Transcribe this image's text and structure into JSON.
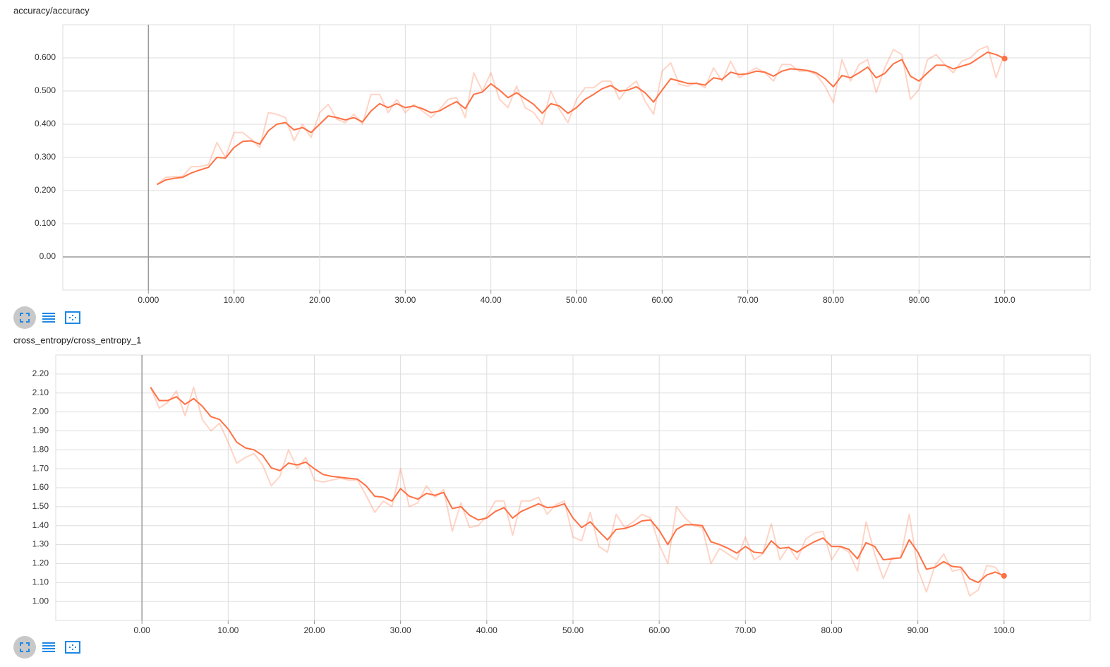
{
  "chart_data": [
    {
      "type": "line",
      "title": "accuracy/accuracy",
      "grid": true,
      "xlim": [
        -10,
        110
      ],
      "ylim": [
        -0.1,
        0.7
      ],
      "xticks": [
        {
          "value": 0,
          "label": "0.000"
        },
        {
          "value": 10,
          "label": "10.00"
        },
        {
          "value": 20,
          "label": "20.00"
        },
        {
          "value": 30,
          "label": "30.00"
        },
        {
          "value": 40,
          "label": "40.00"
        },
        {
          "value": 50,
          "label": "50.00"
        },
        {
          "value": 60,
          "label": "60.00"
        },
        {
          "value": 70,
          "label": "70.00"
        },
        {
          "value": 80,
          "label": "80.00"
        },
        {
          "value": 90,
          "label": "90.00"
        },
        {
          "value": 100,
          "label": "100.0"
        }
      ],
      "yticks": [
        {
          "value": 0,
          "label": "0.00"
        },
        {
          "value": 0.1,
          "label": "0.100"
        },
        {
          "value": 0.2,
          "label": "0.200"
        },
        {
          "value": 0.3,
          "label": "0.300"
        },
        {
          "value": 0.4,
          "label": "0.400"
        },
        {
          "value": 0.5,
          "label": "0.500"
        },
        {
          "value": 0.6,
          "label": "0.600"
        }
      ],
      "x": [
        1,
        2,
        3,
        4,
        5,
        6,
        7,
        8,
        9,
        10,
        11,
        12,
        13,
        14,
        15,
        16,
        17,
        18,
        19,
        20,
        21,
        22,
        23,
        24,
        25,
        26,
        27,
        28,
        29,
        30,
        31,
        32,
        33,
        34,
        35,
        36,
        37,
        38,
        39,
        40,
        41,
        42,
        43,
        44,
        45,
        46,
        47,
        48,
        49,
        50,
        51,
        52,
        53,
        54,
        55,
        56,
        57,
        58,
        59,
        60,
        61,
        62,
        63,
        64,
        65,
        66,
        67,
        68,
        69,
        70,
        71,
        72,
        73,
        74,
        75,
        76,
        77,
        78,
        79,
        80,
        81,
        82,
        83,
        84,
        85,
        86,
        87,
        88,
        89,
        90,
        91,
        92,
        93,
        94,
        95,
        96,
        97,
        98,
        99,
        100
      ],
      "series": [
        {
          "color": "#ff7043",
          "opacity": 0.3,
          "values": [
            0.218,
            0.24,
            0.242,
            0.243,
            0.272,
            0.272,
            0.278,
            0.345,
            0.3,
            0.375,
            0.375,
            0.355,
            0.33,
            0.435,
            0.43,
            0.42,
            0.35,
            0.4,
            0.36,
            0.435,
            0.46,
            0.415,
            0.405,
            0.43,
            0.4,
            0.49,
            0.49,
            0.435,
            0.475,
            0.435,
            0.46,
            0.44,
            0.42,
            0.445,
            0.475,
            0.48,
            0.42,
            0.555,
            0.5,
            0.555,
            0.475,
            0.45,
            0.515,
            0.45,
            0.435,
            0.4,
            0.5,
            0.445,
            0.405,
            0.475,
            0.51,
            0.51,
            0.53,
            0.53,
            0.475,
            0.51,
            0.53,
            0.47,
            0.43,
            0.56,
            0.585,
            0.52,
            0.515,
            0.525,
            0.51,
            0.57,
            0.53,
            0.59,
            0.54,
            0.555,
            0.57,
            0.555,
            0.53,
            0.58,
            0.58,
            0.56,
            0.56,
            0.55,
            0.515,
            0.465,
            0.595,
            0.53,
            0.58,
            0.595,
            0.495,
            0.57,
            0.625,
            0.61,
            0.475,
            0.505,
            0.595,
            0.61,
            0.58,
            0.555,
            0.59,
            0.6,
            0.625,
            0.635,
            0.54,
            0.615
          ]
        },
        {
          "color": "#ff7043",
          "opacity": 1,
          "values": [
            0.218,
            0.232,
            0.237,
            0.24,
            0.253,
            0.262,
            0.27,
            0.3,
            0.298,
            0.33,
            0.348,
            0.35,
            0.34,
            0.38,
            0.4,
            0.405,
            0.383,
            0.39,
            0.375,
            0.4,
            0.425,
            0.42,
            0.413,
            0.42,
            0.407,
            0.44,
            0.462,
            0.45,
            0.462,
            0.45,
            0.455,
            0.447,
            0.435,
            0.44,
            0.455,
            0.468,
            0.447,
            0.49,
            0.497,
            0.522,
            0.503,
            0.48,
            0.495,
            0.477,
            0.46,
            0.433,
            0.462,
            0.455,
            0.433,
            0.45,
            0.475,
            0.49,
            0.507,
            0.517,
            0.5,
            0.503,
            0.513,
            0.495,
            0.467,
            0.503,
            0.537,
            0.53,
            0.523,
            0.523,
            0.518,
            0.54,
            0.535,
            0.557,
            0.55,
            0.552,
            0.56,
            0.557,
            0.545,
            0.56,
            0.567,
            0.565,
            0.562,
            0.555,
            0.538,
            0.513,
            0.547,
            0.54,
            0.555,
            0.572,
            0.54,
            0.553,
            0.582,
            0.595,
            0.545,
            0.53,
            0.555,
            0.578,
            0.578,
            0.567,
            0.575,
            0.583,
            0.6,
            0.617,
            0.61,
            0.598
          ]
        }
      ]
    },
    {
      "type": "line",
      "title": "cross_entropy/cross_entropy_1",
      "grid": true,
      "xlim": [
        -10,
        110
      ],
      "ylim": [
        0.9,
        2.3
      ],
      "xticks": [
        {
          "value": 0,
          "label": "0.00"
        },
        {
          "value": 10,
          "label": "10.00"
        },
        {
          "value": 20,
          "label": "20.00"
        },
        {
          "value": 30,
          "label": "30.00"
        },
        {
          "value": 40,
          "label": "40.00"
        },
        {
          "value": 50,
          "label": "50.00"
        },
        {
          "value": 60,
          "label": "60.00"
        },
        {
          "value": 70,
          "label": "70.00"
        },
        {
          "value": 80,
          "label": "80.00"
        },
        {
          "value": 90,
          "label": "90.00"
        },
        {
          "value": 100,
          "label": "100.0"
        }
      ],
      "yticks": [
        {
          "value": 1.0,
          "label": "1.00"
        },
        {
          "value": 1.1,
          "label": "1.10"
        },
        {
          "value": 1.2,
          "label": "1.20"
        },
        {
          "value": 1.3,
          "label": "1.30"
        },
        {
          "value": 1.4,
          "label": "1.40"
        },
        {
          "value": 1.5,
          "label": "1.50"
        },
        {
          "value": 1.6,
          "label": "1.60"
        },
        {
          "value": 1.7,
          "label": "1.70"
        },
        {
          "value": 1.8,
          "label": "1.80"
        },
        {
          "value": 1.9,
          "label": "1.90"
        },
        {
          "value": 2.0,
          "label": "2.00"
        },
        {
          "value": 2.1,
          "label": "2.10"
        },
        {
          "value": 2.2,
          "label": "2.20"
        }
      ],
      "x": [
        1,
        2,
        3,
        4,
        5,
        6,
        7,
        8,
        9,
        10,
        11,
        12,
        13,
        14,
        15,
        16,
        17,
        18,
        19,
        20,
        21,
        22,
        23,
        24,
        25,
        26,
        27,
        28,
        29,
        30,
        31,
        32,
        33,
        34,
        35,
        36,
        37,
        38,
        39,
        40,
        41,
        42,
        43,
        44,
        45,
        46,
        47,
        48,
        49,
        50,
        51,
        52,
        53,
        54,
        55,
        56,
        57,
        58,
        59,
        60,
        61,
        62,
        63,
        64,
        65,
        66,
        67,
        68,
        69,
        70,
        71,
        72,
        73,
        74,
        75,
        76,
        77,
        78,
        79,
        80,
        81,
        82,
        83,
        84,
        85,
        86,
        87,
        88,
        89,
        90,
        91,
        92,
        93,
        94,
        95,
        96,
        97,
        98,
        99,
        100
      ],
      "series": [
        {
          "color": "#ff7043",
          "opacity": 0.3,
          "values": [
            2.13,
            2.02,
            2.05,
            2.11,
            1.98,
            2.13,
            1.96,
            1.9,
            1.94,
            1.84,
            1.73,
            1.76,
            1.78,
            1.72,
            1.61,
            1.66,
            1.8,
            1.7,
            1.76,
            1.64,
            1.63,
            1.64,
            1.65,
            1.64,
            1.64,
            1.56,
            1.47,
            1.53,
            1.5,
            1.7,
            1.5,
            1.52,
            1.61,
            1.55,
            1.59,
            1.37,
            1.52,
            1.39,
            1.4,
            1.45,
            1.53,
            1.53,
            1.35,
            1.53,
            1.53,
            1.55,
            1.46,
            1.51,
            1.53,
            1.34,
            1.32,
            1.47,
            1.29,
            1.26,
            1.46,
            1.39,
            1.42,
            1.46,
            1.44,
            1.3,
            1.2,
            1.5,
            1.44,
            1.4,
            1.39,
            1.2,
            1.28,
            1.25,
            1.22,
            1.34,
            1.22,
            1.25,
            1.41,
            1.22,
            1.29,
            1.22,
            1.33,
            1.36,
            1.37,
            1.22,
            1.29,
            1.26,
            1.16,
            1.42,
            1.25,
            1.12,
            1.23,
            1.23,
            1.46,
            1.17,
            1.05,
            1.19,
            1.25,
            1.16,
            1.17,
            1.03,
            1.06,
            1.19,
            1.18,
            1.12
          ]
        },
        {
          "color": "#ff7043",
          "opacity": 1,
          "values": [
            2.13,
            2.06,
            2.06,
            2.08,
            2.04,
            2.07,
            2.03,
            1.975,
            1.96,
            1.91,
            1.84,
            1.81,
            1.8,
            1.77,
            1.705,
            1.69,
            1.73,
            1.72,
            1.735,
            1.7,
            1.67,
            1.66,
            1.655,
            1.65,
            1.645,
            1.61,
            1.555,
            1.55,
            1.53,
            1.595,
            1.555,
            1.54,
            1.57,
            1.56,
            1.575,
            1.49,
            1.5,
            1.455,
            1.43,
            1.44,
            1.475,
            1.495,
            1.44,
            1.475,
            1.495,
            1.515,
            1.495,
            1.5,
            1.515,
            1.44,
            1.39,
            1.42,
            1.37,
            1.325,
            1.38,
            1.385,
            1.4,
            1.425,
            1.43,
            1.375,
            1.3,
            1.38,
            1.405,
            1.405,
            1.4,
            1.315,
            1.3,
            1.28,
            1.255,
            1.29,
            1.26,
            1.255,
            1.32,
            1.28,
            1.285,
            1.26,
            1.29,
            1.315,
            1.335,
            1.29,
            1.29,
            1.275,
            1.225,
            1.31,
            1.29,
            1.22,
            1.225,
            1.23,
            1.325,
            1.26,
            1.17,
            1.18,
            1.21,
            1.185,
            1.18,
            1.12,
            1.1,
            1.14,
            1.155,
            1.135
          ]
        }
      ]
    }
  ]
}
